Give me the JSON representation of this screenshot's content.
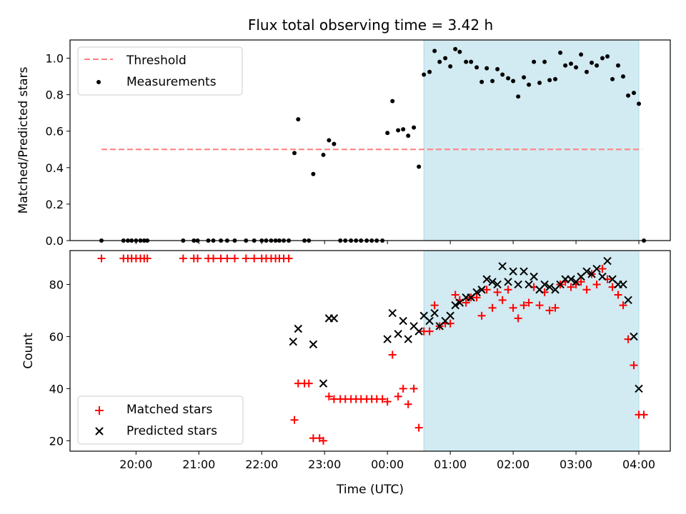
{
  "figure": {
    "title": "Flux total observing time = 3.42 h",
    "colors": {
      "threshold": "#ff7f7f",
      "measurement": "#000000",
      "matched": "#ff0000",
      "predicted": "#000000",
      "span": "#add8e6"
    }
  },
  "chart_data": [
    {
      "type": "scatter",
      "title": "Flux total observing time = 3.42 h",
      "xlabel": "",
      "ylabel": "Matched/Predicted stars",
      "x_unit": "hours (UTC, 20:00 = 20)",
      "xlim": [
        18.95,
        28.5
      ],
      "ylim": [
        0.0,
        1.1
      ],
      "yticks": [
        "0.0",
        "0.2",
        "0.4",
        "0.6",
        "0.8",
        "1.0"
      ],
      "span": [
        24.58,
        28.0
      ],
      "legend": {
        "position": "upper-left",
        "entries": [
          "Threshold",
          "Measurements"
        ]
      },
      "threshold": {
        "name": "Threshold",
        "y": 0.5,
        "x": [
          19.45,
          28.05
        ]
      },
      "series": [
        {
          "name": "Measurements",
          "x": [
            19.45,
            19.8,
            19.87,
            19.93,
            20.0,
            20.07,
            20.13,
            20.18,
            20.75,
            20.92,
            20.98,
            21.15,
            21.23,
            21.35,
            21.45,
            21.57,
            21.75,
            21.88,
            22.0,
            22.07,
            22.15,
            22.22,
            22.28,
            22.35,
            22.43,
            22.52,
            22.58,
            22.68,
            22.75,
            22.82,
            22.98,
            23.07,
            23.15,
            23.25,
            23.33,
            23.42,
            23.5,
            23.58,
            23.67,
            23.75,
            23.83,
            23.92,
            24.0,
            24.08,
            24.17,
            24.25,
            24.33,
            24.42,
            24.5,
            24.58,
            24.67,
            24.75,
            24.83,
            24.92,
            25.0,
            25.08,
            25.15,
            25.25,
            25.33,
            25.42,
            25.5,
            25.58,
            25.67,
            25.75,
            25.83,
            25.92,
            26.0,
            26.08,
            26.17,
            26.25,
            26.33,
            26.42,
            26.5,
            26.58,
            26.67,
            26.75,
            26.83,
            26.92,
            27.0,
            27.08,
            27.17,
            27.25,
            27.33,
            27.42,
            27.5,
            27.58,
            27.67,
            27.75,
            27.83,
            27.92,
            28.0,
            28.08
          ],
          "y": [
            0.0,
            0.0,
            0.0,
            0.0,
            0.0,
            0.0,
            0.0,
            0.0,
            0.0,
            0.0,
            0.0,
            0.0,
            0.0,
            0.0,
            0.0,
            0.0,
            0.0,
            0.0,
            0.0,
            0.0,
            0.0,
            0.0,
            0.0,
            0.0,
            0.0,
            0.48,
            0.665,
            0.0,
            0.0,
            0.365,
            0.47,
            0.55,
            0.53,
            0.0,
            0.0,
            0.0,
            0.0,
            0.0,
            0.0,
            0.0,
            0.0,
            0.0,
            0.59,
            0.765,
            0.605,
            0.61,
            0.575,
            0.62,
            0.405,
            0.91,
            0.925,
            1.04,
            0.98,
            1.0,
            0.955,
            1.05,
            1.035,
            0.98,
            0.98,
            0.95,
            0.87,
            0.945,
            0.875,
            0.94,
            0.91,
            0.89,
            0.875,
            0.79,
            0.895,
            0.855,
            0.98,
            0.865,
            0.98,
            0.88,
            0.885,
            1.03,
            0.96,
            0.97,
            0.95,
            1.02,
            0.925,
            0.975,
            0.96,
            1.0,
            1.01,
            0.885,
            0.96,
            0.9,
            0.795,
            0.81,
            0.75,
            0.0
          ]
        }
      ]
    },
    {
      "type": "scatter",
      "title": "",
      "xlabel": "Time (UTC)",
      "ylabel": "Count",
      "x_unit": "hours (UTC, 20:00 = 20)",
      "xlim": [
        18.95,
        28.5
      ],
      "ylim": [
        16,
        93
      ],
      "yticks": [
        "20",
        "40",
        "60",
        "80"
      ],
      "xticks": [
        {
          "value": 20,
          "label": "20:00"
        },
        {
          "value": 21,
          "label": "21:00"
        },
        {
          "value": 22,
          "label": "22:00"
        },
        {
          "value": 23,
          "label": "23:00"
        },
        {
          "value": 24,
          "label": "00:00"
        },
        {
          "value": 25,
          "label": "01:00"
        },
        {
          "value": 26,
          "label": "02:00"
        },
        {
          "value": 27,
          "label": "03:00"
        },
        {
          "value": 28,
          "label": "04:00"
        }
      ],
      "span": [
        24.58,
        28.0
      ],
      "legend": {
        "position": "lower-left",
        "entries": [
          "Matched stars",
          "Predicted stars"
        ]
      },
      "series": [
        {
          "name": "Matched stars",
          "marker": "plus",
          "x": [
            19.45,
            19.8,
            19.87,
            19.93,
            20.0,
            20.07,
            20.13,
            20.18,
            20.75,
            20.92,
            20.98,
            21.15,
            21.23,
            21.35,
            21.45,
            21.57,
            21.75,
            21.88,
            22.0,
            22.07,
            22.15,
            22.22,
            22.28,
            22.35,
            22.43,
            22.52,
            22.58,
            22.68,
            22.75,
            22.82,
            22.92,
            22.98,
            23.07,
            23.15,
            23.25,
            23.33,
            23.42,
            23.5,
            23.58,
            23.67,
            23.75,
            23.83,
            23.92,
            24.0,
            24.08,
            24.17,
            24.25,
            24.33,
            24.42,
            24.5,
            24.58,
            24.67,
            24.75,
            24.83,
            24.92,
            25.0,
            25.08,
            25.15,
            25.25,
            25.33,
            25.42,
            25.5,
            25.58,
            25.67,
            25.75,
            25.83,
            25.92,
            26.0,
            26.08,
            26.17,
            26.25,
            26.33,
            26.42,
            26.5,
            26.58,
            26.67,
            26.75,
            26.83,
            26.92,
            27.0,
            27.08,
            27.17,
            27.25,
            27.33,
            27.42,
            27.5,
            27.58,
            27.67,
            27.75,
            27.83,
            27.92,
            28.0,
            28.08
          ],
          "y": [
            90,
            90,
            90,
            90,
            90,
            90,
            90,
            90,
            90,
            90,
            90,
            90,
            90,
            90,
            90,
            90,
            90,
            90,
            90,
            90,
            90,
            90,
            90,
            90,
            90,
            28,
            42,
            42,
            42,
            21,
            21,
            20,
            37,
            36,
            36,
            36,
            36,
            36,
            36,
            36,
            36,
            36,
            36,
            35,
            53,
            37,
            40,
            34,
            40,
            25,
            62,
            62,
            72,
            64,
            65,
            65,
            76,
            74,
            73,
            75,
            75,
            68,
            78,
            71,
            77,
            74,
            78,
            71,
            67,
            72,
            73,
            79,
            72,
            77,
            70,
            71,
            80,
            81,
            79,
            80,
            81,
            78,
            84,
            80,
            86,
            82,
            79,
            76,
            72,
            59,
            49,
            30,
            30
          ]
        },
        {
          "name": "Predicted stars",
          "marker": "x",
          "x": [
            22.5,
            22.58,
            22.82,
            22.98,
            23.07,
            23.15,
            24.0,
            24.08,
            24.17,
            24.25,
            24.33,
            24.42,
            24.5,
            24.58,
            24.67,
            24.75,
            24.83,
            24.92,
            25.0,
            25.08,
            25.15,
            25.25,
            25.33,
            25.42,
            25.5,
            25.58,
            25.67,
            25.75,
            25.83,
            25.92,
            26.0,
            26.08,
            26.17,
            26.25,
            26.33,
            26.42,
            26.5,
            26.58,
            26.67,
            26.75,
            26.83,
            26.92,
            27.0,
            27.08,
            27.17,
            27.25,
            27.33,
            27.42,
            27.5,
            27.58,
            27.67,
            27.75,
            27.83,
            27.92,
            28.0
          ],
          "y": [
            58,
            63,
            57,
            42,
            67,
            67,
            59,
            69,
            61,
            66,
            59,
            64,
            62,
            68,
            66,
            69,
            64,
            66,
            68,
            72,
            73,
            75,
            75,
            77,
            78,
            82,
            81,
            80,
            87,
            81,
            85,
            80,
            85,
            80,
            83,
            78,
            80,
            79,
            78,
            80,
            82,
            82,
            81,
            83,
            85,
            84,
            86,
            83,
            89,
            82,
            80,
            80,
            74,
            60,
            40
          ]
        }
      ]
    }
  ]
}
